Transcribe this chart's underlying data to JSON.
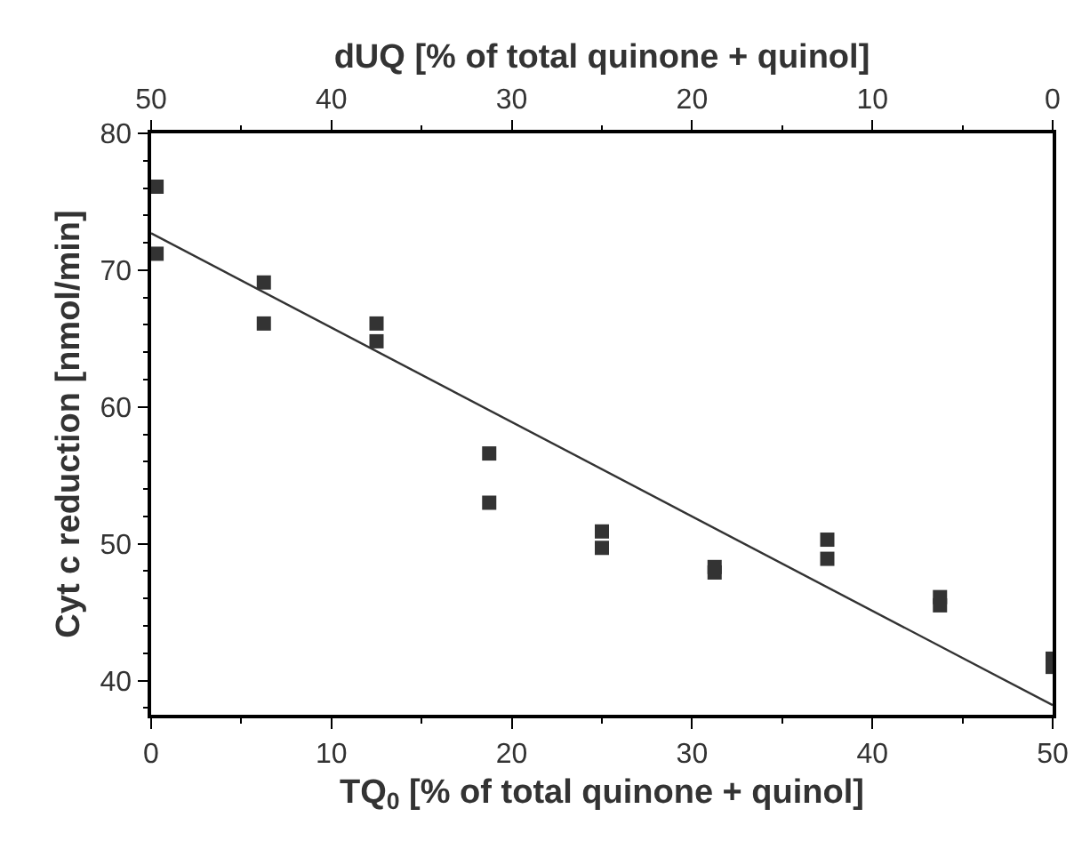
{
  "chart_data": {
    "type": "scatter",
    "xlabel": "TQ$_{0}$ [% of total quinone + quinol]",
    "x2label": "dUQ [% of total quinone + quinol]",
    "ylabel": "Cyt c reduction [nmol/min]",
    "xlim": [
      0,
      50
    ],
    "xticks": [
      0,
      10,
      20,
      30,
      40,
      50
    ],
    "x2lim": [
      50,
      0
    ],
    "x2ticks": [
      50,
      40,
      30,
      20,
      10,
      0
    ],
    "ylim": [
      37.5,
      80
    ],
    "yticks": [
      40,
      50,
      60,
      70,
      80
    ],
    "marker": "square",
    "series": [
      {
        "color": "#333333",
        "x": [
          0.3,
          0.3,
          6.25,
          6.25,
          12.5,
          12.5,
          18.75,
          18.75,
          25,
          25,
          31.25,
          31.25,
          37.5,
          37.5,
          43.75,
          43.75,
          50,
          50
        ],
        "values": [
          76.1,
          71.2,
          69.1,
          66.1,
          66.1,
          64.8,
          56.6,
          53.0,
          50.9,
          49.7,
          48.3,
          47.9,
          50.3,
          48.9,
          46.1,
          45.5,
          41.6,
          41.0
        ]
      },
      {
        "type": "line",
        "marker": "none",
        "color": "#333333",
        "line_style": "solid",
        "x": [
          0,
          50
        ],
        "values": [
          72.7,
          38.2
        ]
      }
    ]
  }
}
